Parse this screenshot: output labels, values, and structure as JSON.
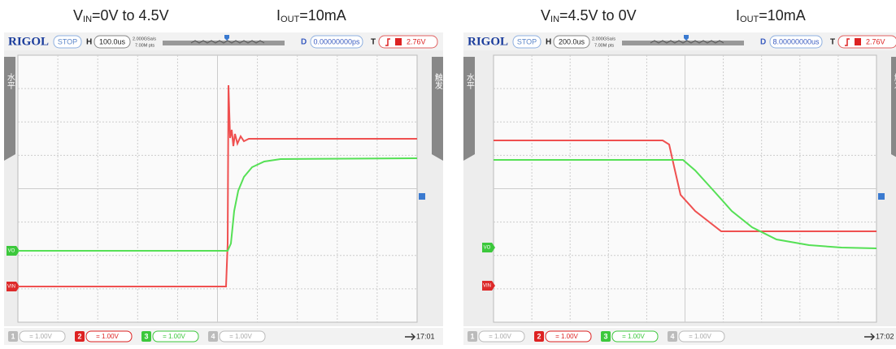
{
  "panels": [
    {
      "caption": {
        "v": "V",
        "v_sub": "IN",
        "v_rest": "=0V to 4.5V",
        "i": "I",
        "i_sub": "OUT",
        "i_rest": "=10mA"
      },
      "header": {
        "brand": "RIGOL",
        "state": "STOP",
        "h": "H",
        "timebase": "100.0us",
        "rate": "2.000GSa/s",
        "points": "7.00M pts",
        "d": "D",
        "delay": "0.00000000ps",
        "t": "T",
        "trigger": "2.76V"
      },
      "side_left": "水平",
      "side_right": "触发",
      "marker_vo": "VO",
      "marker_vin": "VIN",
      "channels": [
        {
          "num": "1",
          "scale": "= 1.00V"
        },
        {
          "num": "2",
          "scale": "= 1.00V"
        },
        {
          "num": "3",
          "scale": "= 1.00V"
        },
        {
          "num": "4",
          "scale": "= 1.00V"
        }
      ],
      "time": "17:01"
    },
    {
      "caption": {
        "v": "V",
        "v_sub": "IN",
        "v_rest": "=4.5V to 0V",
        "i": "I",
        "i_sub": "OUT",
        "i_rest": "=10mA"
      },
      "header": {
        "brand": "RIGOL",
        "state": "STOP",
        "h": "H",
        "timebase": "200.0us",
        "rate": "2.000GSa/s",
        "points": "7.00M pts",
        "d": "D",
        "delay": "8.00000000us",
        "t": "T",
        "trigger": "2.76V"
      },
      "side_left": "水平",
      "side_right": "触发",
      "marker_vo": "VO",
      "marker_vin": "VIN",
      "channels": [
        {
          "num": "1",
          "scale": "= 1.00V"
        },
        {
          "num": "2",
          "scale": "= 1.00V"
        },
        {
          "num": "3",
          "scale": "= 1.00V"
        },
        {
          "num": "4",
          "scale": "= 1.00V"
        }
      ],
      "time": "17:02"
    }
  ]
}
